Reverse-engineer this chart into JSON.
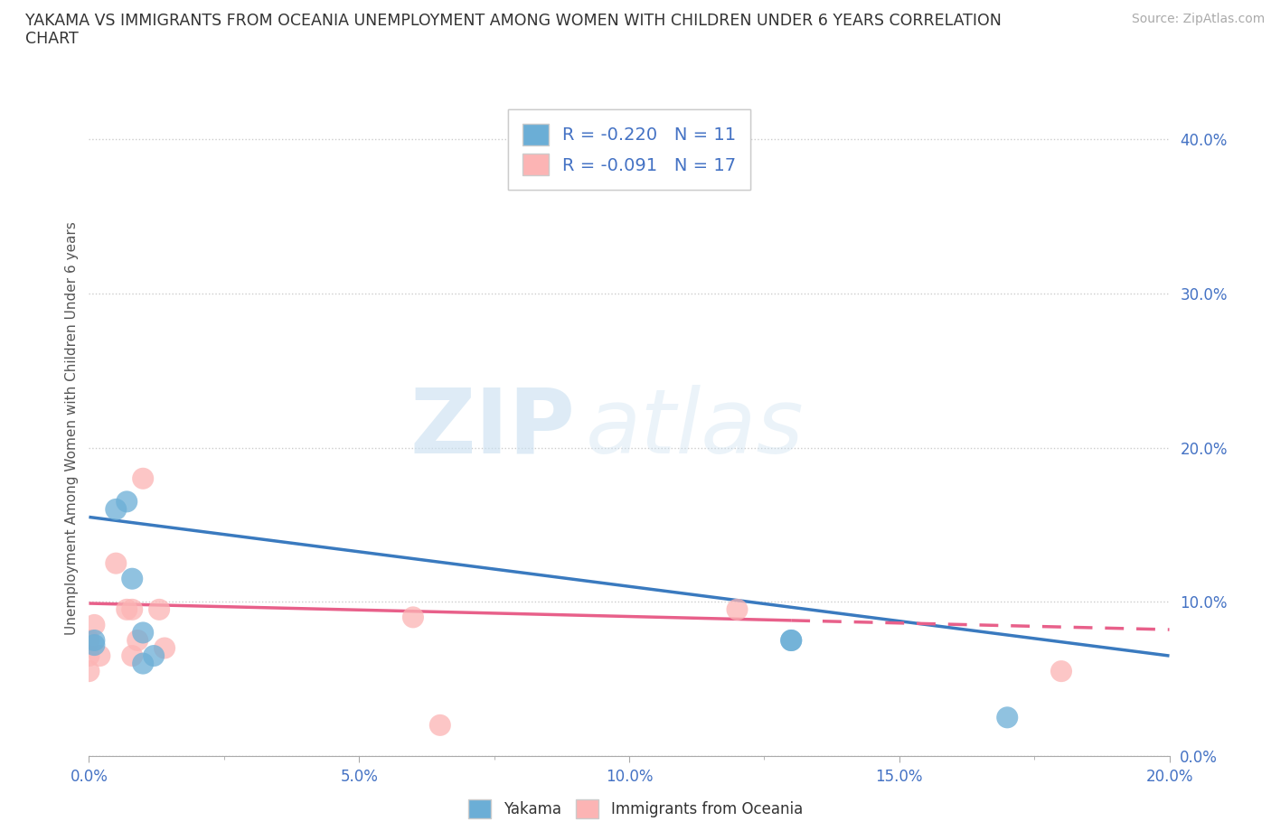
{
  "title_line1": "YAKAMA VS IMMIGRANTS FROM OCEANIA UNEMPLOYMENT AMONG WOMEN WITH CHILDREN UNDER 6 YEARS CORRELATION",
  "title_line2": "CHART",
  "source": "Source: ZipAtlas.com",
  "ylabel_label": "Unemployment Among Women with Children Under 6 years",
  "xmin": 0.0,
  "xmax": 0.2,
  "ymin": 0.0,
  "ymax": 0.425,
  "yakama_color": "#6baed6",
  "oceania_color": "#fcb4b4",
  "trend_yakama_color": "#3a7abf",
  "trend_oceania_color": "#e8608a",
  "legend_R_yakama": "-0.220",
  "legend_N_yakama": "11",
  "legend_R_oceania": "-0.091",
  "legend_N_oceania": "17",
  "watermark_zip": "ZIP",
  "watermark_atlas": "atlas",
  "yakama_x": [
    0.001,
    0.001,
    0.005,
    0.007,
    0.008,
    0.01,
    0.01,
    0.012,
    0.13,
    0.13,
    0.17
  ],
  "yakama_y": [
    0.075,
    0.072,
    0.16,
    0.165,
    0.115,
    0.08,
    0.06,
    0.065,
    0.075,
    0.075,
    0.025
  ],
  "oceania_x": [
    0.0,
    0.0,
    0.0,
    0.001,
    0.002,
    0.005,
    0.007,
    0.008,
    0.008,
    0.009,
    0.01,
    0.013,
    0.014,
    0.06,
    0.065,
    0.12,
    0.18
  ],
  "oceania_y": [
    0.075,
    0.065,
    0.055,
    0.085,
    0.065,
    0.125,
    0.095,
    0.095,
    0.065,
    0.075,
    0.18,
    0.095,
    0.07,
    0.09,
    0.02,
    0.095,
    0.055
  ],
  "trend_yakama_x0": 0.0,
  "trend_yakama_x1": 0.2,
  "trend_yakama_y0": 0.155,
  "trend_yakama_y1": 0.065,
  "trend_oceania_x0": 0.0,
  "trend_oceania_x1": 0.2,
  "trend_oceania_y0": 0.099,
  "trend_oceania_y1": 0.082
}
